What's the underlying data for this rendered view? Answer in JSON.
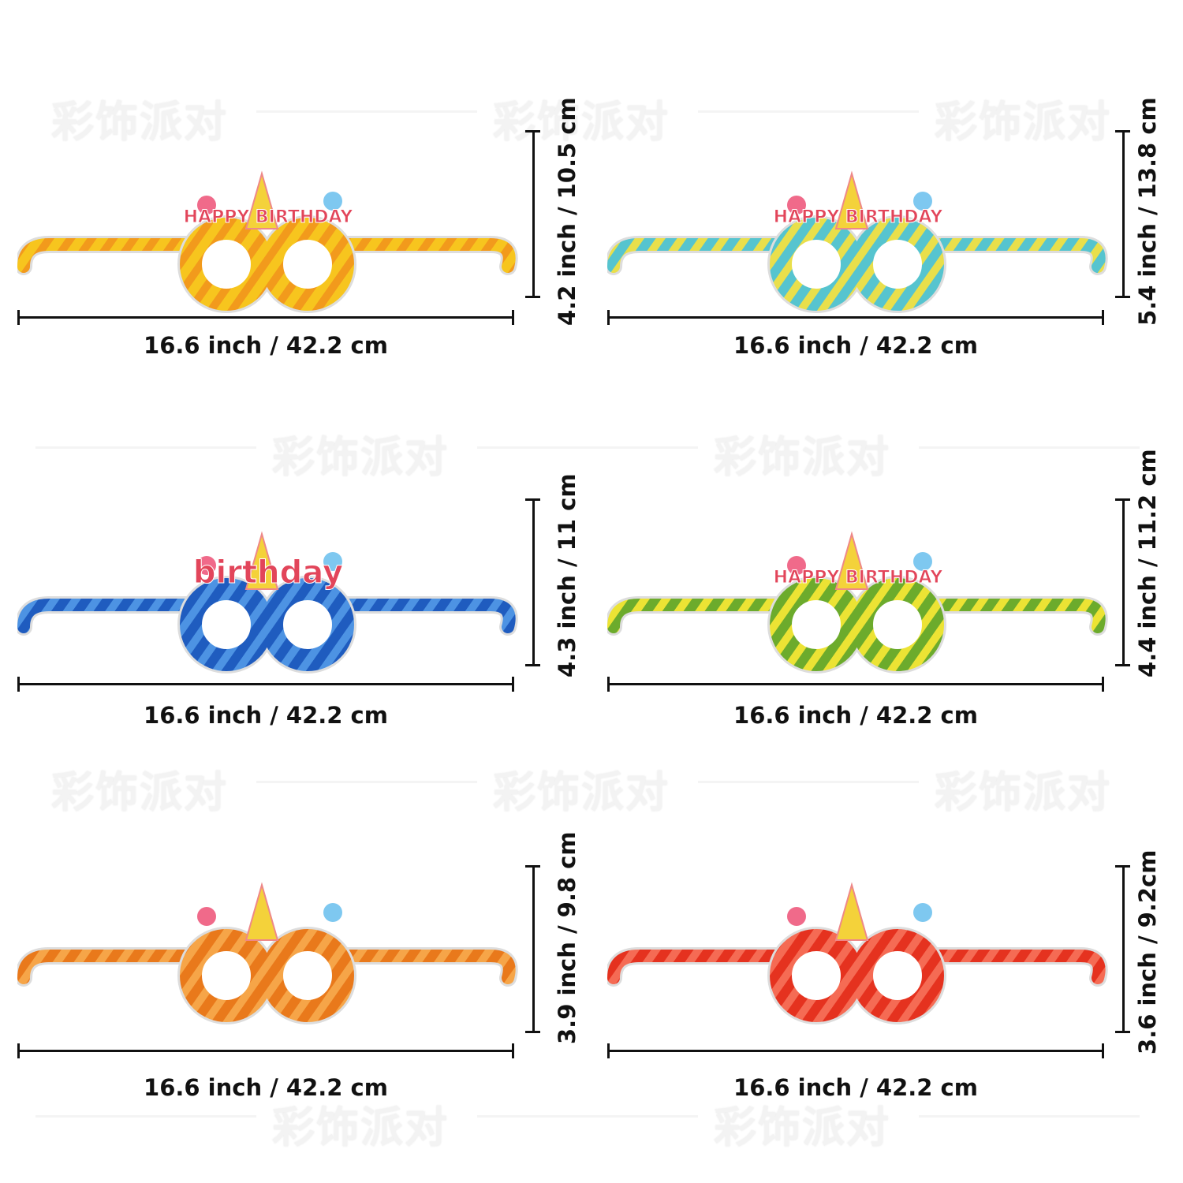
{
  "watermark": "彩饰派对",
  "panels": [
    {
      "width_label": "16.6 inch / 42.2 cm",
      "height_label": "4.2 inch / 10.5 cm",
      "colors": [
        "#f7c51e",
        "#f29a1c"
      ],
      "decoration": "HAPPY BIRTHDAY",
      "lens": "star"
    },
    {
      "width_label": "16.6 inch / 42.2 cm",
      "height_label": "5.4 inch / 13.8 cm",
      "colors": [
        "#56c4cf",
        "#e9df4b"
      ],
      "decoration": "HAPPY BIRTHDAY",
      "lens": "round"
    },
    {
      "width_label": "16.6 inch / 42.2 cm",
      "height_label": "4.3 inch / 11 cm",
      "colors": [
        "#1f5cbf",
        "#4d93e3"
      ],
      "decoration": "birthday",
      "lens": "round"
    },
    {
      "width_label": "16.6 inch / 42.2 cm",
      "height_label": "4.4 inch / 11.2 cm",
      "colors": [
        "#6cab2c",
        "#ece334"
      ],
      "decoration": "HAPPY BIRTHDAY",
      "lens": "round"
    },
    {
      "width_label": "16.6 inch / 42.2 cm",
      "height_label": "3.9 inch / 9.8 cm",
      "colors": [
        "#e9791b",
        "#f6a548"
      ],
      "decoration": "",
      "lens": "round"
    },
    {
      "width_label": "16.6 inch / 42.2 cm",
      "height_label": "3.6 inch / 9.2cm",
      "colors": [
        "#e5321f",
        "#f56b54"
      ],
      "decoration": "",
      "lens": "round"
    }
  ]
}
